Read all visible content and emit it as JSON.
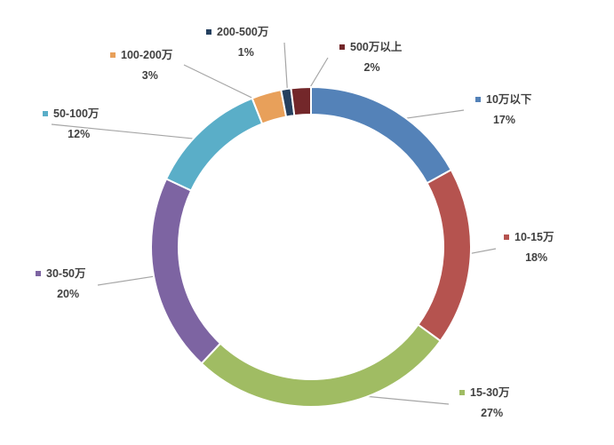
{
  "chart_data": {
    "type": "pie",
    "variant": "donut",
    "title": "",
    "legend": "none",
    "slices": [
      {
        "label": "10万以下",
        "value": 17,
        "pct_label": "17%",
        "color": "#5482B8"
      },
      {
        "label": "10-15万",
        "value": 18,
        "pct_label": "18%",
        "color": "#B5534F"
      },
      {
        "label": "15-30万",
        "value": 27,
        "pct_label": "27%",
        "color": "#A0BC63"
      },
      {
        "label": "30-50万",
        "value": 20,
        "pct_label": "20%",
        "color": "#7D64A2"
      },
      {
        "label": "50-100万",
        "value": 12,
        "pct_label": "12%",
        "color": "#5AAEC8"
      },
      {
        "label": "100-200万",
        "value": 3,
        "pct_label": "3%",
        "color": "#E8A05A"
      },
      {
        "label": "200-500万",
        "value": 1,
        "pct_label": "1%",
        "color": "#25405F"
      },
      {
        "label": "500万以上",
        "value": 2,
        "pct_label": "2%",
        "color": "#73272A"
      }
    ]
  }
}
